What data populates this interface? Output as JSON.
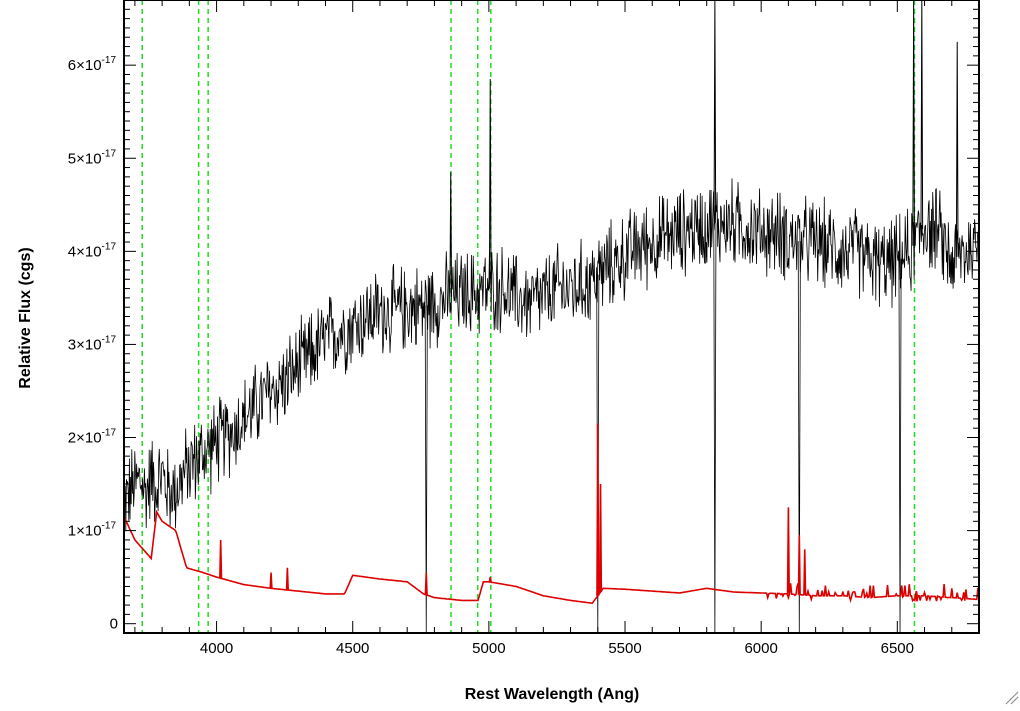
{
  "chart_data": {
    "type": "line",
    "title": "",
    "xlabel": "Rest Wavelength (Ang)",
    "ylabel": "Relative Flux (cgs)",
    "xlim": [
      3660,
      6800
    ],
    "ylim": [
      -1e-18,
      6.7e-17
    ],
    "x_ticks": [
      4000,
      4500,
      5000,
      5500,
      6000,
      6500
    ],
    "x_tick_labels": [
      "4000",
      "4500",
      "5000",
      "5500",
      "6000",
      "6500"
    ],
    "y_ticks": [
      0,
      1e-17,
      2e-17,
      3e-17,
      4e-17,
      5e-17,
      6e-17
    ],
    "y_tick_mantissa": [
      "0",
      "1",
      "2",
      "3",
      "4",
      "5",
      "6"
    ],
    "y_tick_times": "×10",
    "y_tick_exponent": "-17",
    "line_markers_x": [
      3727,
      3934,
      3969,
      4861,
      4959,
      5007,
      6563
    ],
    "marker_color": "#22dd22",
    "series": [
      {
        "color": "#000000",
        "x": [
          3660,
          3680,
          3700,
          3720,
          3740,
          3760,
          3780,
          3800,
          3820,
          3840,
          3860,
          3880,
          3900,
          3920,
          3940,
          3960,
          3980,
          4000,
          4050,
          4100,
          4150,
          4200,
          4250,
          4300,
          4350,
          4400,
          4450,
          4500,
          4550,
          4600,
          4650,
          4700,
          4750,
          4800,
          4850,
          4900,
          4950,
          5000,
          5050,
          5100,
          5150,
          5200,
          5250,
          5300,
          5350,
          5400,
          5450,
          5500,
          5550,
          5600,
          5650,
          5700,
          5750,
          5800,
          5850,
          5900,
          5950,
          6000,
          6050,
          6100,
          6150,
          6200,
          6250,
          6300,
          6350,
          6400,
          6450,
          6500,
          6550,
          6600,
          6650,
          6700,
          6750,
          6800
        ],
        "y": [
          1.3e-17,
          1.4e-17,
          1.5e-17,
          1.55e-17,
          1.4e-17,
          1.6e-17,
          1.5e-17,
          1.6e-17,
          1.45e-17,
          1.4e-17,
          1.5e-17,
          1.6e-17,
          1.7e-17,
          1.75e-17,
          1.8e-17,
          1.85e-17,
          1.9e-17,
          1.95e-17,
          2.05e-17,
          2.2e-17,
          2.35e-17,
          2.5e-17,
          2.6e-17,
          2.75e-17,
          2.9e-17,
          3.05e-17,
          3.15e-17,
          3.2e-17,
          3.3e-17,
          3.35e-17,
          3.35e-17,
          3.4e-17,
          3.4e-17,
          3.45e-17,
          3.5e-17,
          3.55e-17,
          3.55e-17,
          3.6e-17,
          3.6e-17,
          3.5e-17,
          3.45e-17,
          3.5e-17,
          3.6e-17,
          3.6e-17,
          3.65e-17,
          3.75e-17,
          3.85e-17,
          3.95e-17,
          4.05e-17,
          4.1e-17,
          4.15e-17,
          4.2e-17,
          4.25e-17,
          4.3e-17,
          4.3e-17,
          4.3e-17,
          4.25e-17,
          4.2e-17,
          4.2e-17,
          4.15e-17,
          4.1e-17,
          4.1e-17,
          4.05e-17,
          4e-17,
          4e-17,
          3.9e-17,
          3.85e-17,
          3.9e-17,
          4e-17,
          4.3e-17,
          4.2e-17,
          3.9e-17,
          4e-17,
          4.1e-17
        ],
        "noise": 3.5e-18
      },
      {
        "color": "#dd0000",
        "x": [
          3660,
          3700,
          3760,
          3780,
          3800,
          3850,
          3880,
          3890,
          3950,
          4000,
          4100,
          4200,
          4300,
          4400,
          4470,
          4500,
          4600,
          4700,
          4760,
          4800,
          4900,
          4960,
          4980,
          5000,
          5100,
          5200,
          5300,
          5380,
          5420,
          5500,
          5600,
          5700,
          5800,
          5900,
          6000,
          6100,
          6200,
          6300,
          6400,
          6500,
          6600,
          6700,
          6800
        ],
        "y": [
          1.15e-17,
          9e-18,
          7e-18,
          1.2e-17,
          1.1e-17,
          1e-17,
          7e-18,
          6e-18,
          5.5e-18,
          5e-18,
          4.2e-18,
          3.8e-18,
          3.5e-18,
          3.2e-18,
          3.2e-18,
          5.2e-18,
          4.8e-18,
          4.5e-18,
          3.2e-18,
          2.8e-18,
          2.5e-18,
          2.5e-18,
          4.5e-18,
          4.5e-18,
          4e-18,
          3e-18,
          2.5e-18,
          2.2e-18,
          3.8e-18,
          3.7e-18,
          3.5e-18,
          3.3e-18,
          3.8e-18,
          3.4e-18,
          3.3e-18,
          3.2e-18,
          3e-18,
          3e-18,
          2.8e-18,
          3e-18,
          3e-18,
          2.8e-18,
          2.6e-18
        ],
        "spikes": [
          [
            4015,
            9e-18
          ],
          [
            4200,
            5.5e-18
          ],
          [
            4260,
            6e-18
          ],
          [
            4770,
            5.5e-18
          ],
          [
            5005,
            5e-18
          ],
          [
            5400,
            2.15e-17
          ],
          [
            5410,
            1.5e-17
          ],
          [
            6100,
            1.25e-17
          ],
          [
            6140,
            9.5e-18
          ],
          [
            6160,
            8e-18
          ],
          [
            6570,
            3.5e-18
          ]
        ]
      }
    ]
  }
}
